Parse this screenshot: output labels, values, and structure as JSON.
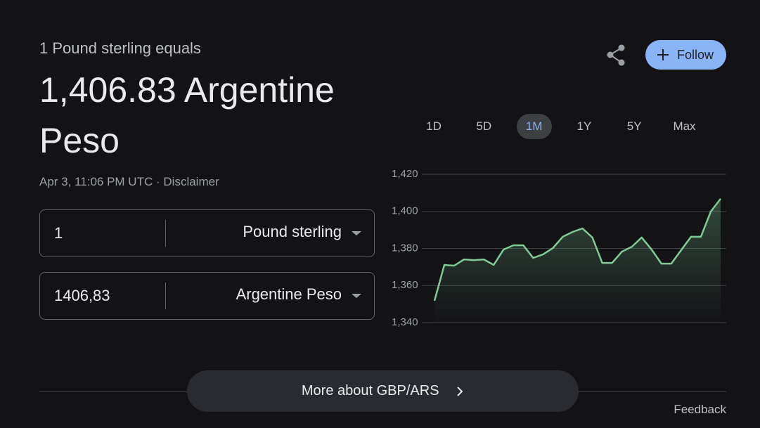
{
  "header": {
    "subtitle": "1 Pound sterling equals",
    "title": "1,406.83 Argentine Peso",
    "timestamp": "Apr 3, 11:06 PM UTC",
    "separator": "·",
    "disclaimer": "Disclaimer"
  },
  "follow": "Follow",
  "converter": [
    {
      "amount": "1",
      "currency": "Pound sterling"
    },
    {
      "amount": "1406,83",
      "currency": "Argentine Peso"
    }
  ],
  "ranges": [
    {
      "label": "1D"
    },
    {
      "label": "5D"
    },
    {
      "label": "1M",
      "selected": true
    },
    {
      "label": "1Y"
    },
    {
      "label": "5Y"
    },
    {
      "label": "Max"
    }
  ],
  "chart_data": {
    "type": "line",
    "color": "#81c995",
    "grid": true,
    "values": [
      1351.8,
      1371.1,
      1370.7,
      1374.1,
      1373.7,
      1374.1,
      1371.1,
      1379.4,
      1381.7,
      1381.7,
      1374.9,
      1376.8,
      1380.2,
      1386.3,
      1388.9,
      1390.8,
      1385.9,
      1372.2,
      1372.2,
      1378.3,
      1380.9,
      1385.9,
      1379.4,
      1371.8,
      1371.8,
      1379.1,
      1386.3,
      1386.3,
      1399.9,
      1406.8
    ],
    "ylim": [
      1340,
      1420
    ],
    "yticks": [
      {
        "value": 1340,
        "label": "1,340"
      },
      {
        "value": 1360,
        "label": "1,360"
      },
      {
        "value": 1380,
        "label": "1,380"
      },
      {
        "value": 1400,
        "label": "1,400"
      },
      {
        "value": 1420,
        "label": "1,420"
      }
    ]
  },
  "more": "More about GBP/ARS",
  "feedback": "Feedback"
}
